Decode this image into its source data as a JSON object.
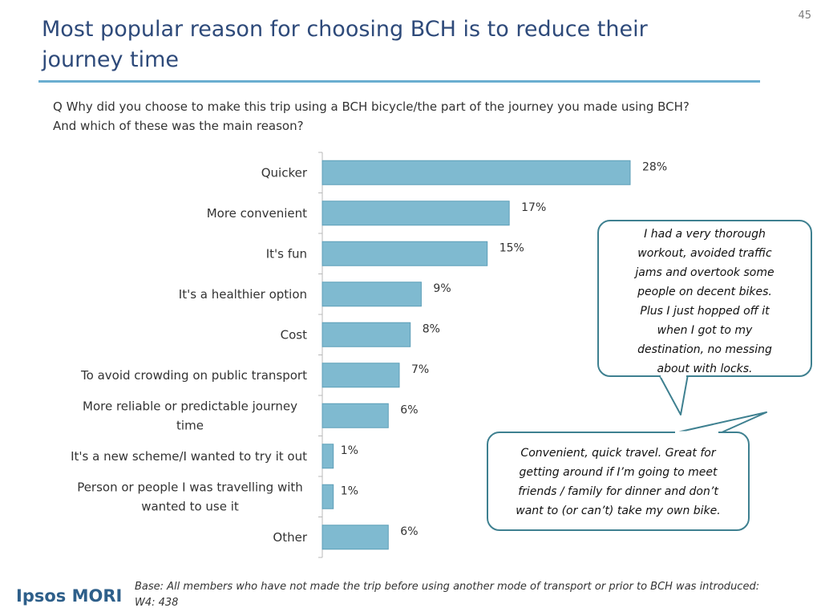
{
  "page_number": "45",
  "title_line1": "Most popular reason for choosing BCH is to reduce their",
  "title_line2": "journey time",
  "question_line1": "Q Why did you choose to make this trip using a BCH bicycle/the part of the journey you made using BCH?",
  "question_line2": "And which of these was the main reason?",
  "chart_data": {
    "type": "bar",
    "orientation": "horizontal",
    "categories": [
      [
        "Quicker"
      ],
      [
        "More convenient"
      ],
      [
        "It's fun"
      ],
      [
        "It's a healthier option"
      ],
      [
        "Cost"
      ],
      [
        "To avoid crowding on public transport"
      ],
      [
        "More reliable or predictable journey",
        "time"
      ],
      [
        "It's a new scheme/I  wanted to try it out"
      ],
      [
        "Person or people I was travelling with",
        "wanted to use it"
      ],
      [
        "Other"
      ]
    ],
    "values": [
      28,
      17,
      15,
      9,
      8,
      7,
      6,
      1,
      1,
      6
    ],
    "value_labels": [
      "28%",
      "17%",
      "15%",
      "9%",
      "8%",
      "7%",
      "6%",
      "1%",
      "1%",
      "6%"
    ],
    "xlim": [
      0,
      30
    ],
    "bar_color": "#7fbad0"
  },
  "quote_1_lines": [
    "I had a very thorough",
    "workout, avoided traffic",
    "jams and overtook some",
    "people on decent bikes.",
    "Plus I just hopped off it",
    "when I got to my",
    "destination, no messing",
    "about with locks."
  ],
  "quote_2_lines": [
    "Convenient, quick travel. Great for",
    "getting around if I’m going to meet",
    "friends / family for dinner and don’t",
    "want to (or can’t) take my own bike."
  ],
  "logo_text": "Ipsos MORI",
  "base_note_line1": "Base: All members who have not made the trip before using another mode of transport or prior to BCH was introduced:",
  "base_note_line2": "W4: 438"
}
